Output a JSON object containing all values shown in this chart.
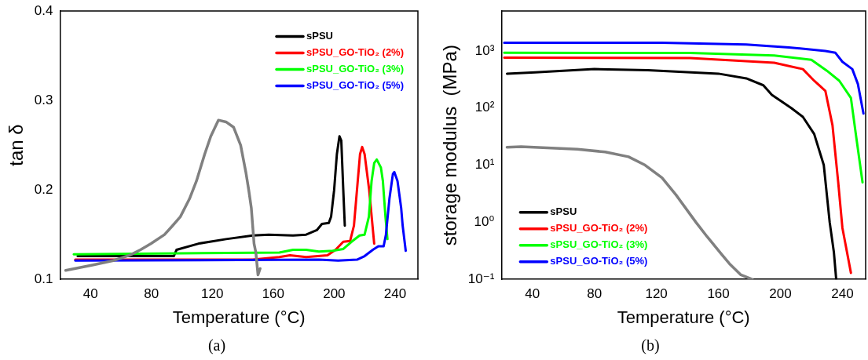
{
  "chart_data": [
    {
      "type": "line",
      "xlabel": "Temperature (°C)",
      "ylabel": "tan δ",
      "annotations": [
        "(a)"
      ],
      "xlim": [
        20,
        255
      ],
      "xticks": [
        40,
        80,
        120,
        160,
        200,
        240
      ],
      "ylim": [
        0.1,
        0.4
      ],
      "yticks": [
        0.1,
        0.2,
        0.3,
        0.4
      ],
      "grid": false,
      "legend": "top right",
      "marker": "none",
      "line_style": "solid",
      "series": [
        {
          "name": "sPSU",
          "color": "#000000",
          "x": [
            31.6,
            94.7,
            96.5,
            111,
            129,
            146.5,
            157,
            173,
            181.6,
            188.6,
            192,
            196.5,
            198,
            200,
            201.8,
            203.5,
            204.7,
            206,
            207
          ],
          "values": [
            0.126,
            0.126,
            0.133,
            0.14,
            0.145,
            0.149,
            0.15,
            0.149,
            0.15,
            0.155,
            0.162,
            0.163,
            0.17,
            0.2,
            0.24,
            0.26,
            0.255,
            0.2,
            0.16
          ]
        },
        {
          "name": "sPSU_GO-TiO₂ (2%)",
          "color": "#ff0000",
          "x": [
            30,
            146.5,
            164,
            171,
            181.6,
            195.6,
            200.9,
            206,
            210.5,
            213,
            215,
            217,
            218.4,
            220,
            223,
            226.3
          ],
          "values": [
            0.122,
            0.122,
            0.125,
            0.127,
            0.125,
            0.127,
            0.133,
            0.142,
            0.143,
            0.16,
            0.2,
            0.24,
            0.248,
            0.24,
            0.2,
            0.14
          ]
        },
        {
          "name": "sPSU_GO-TiO₂ (3%)",
          "color": "#00ff00",
          "x": [
            29,
            164,
            173,
            181.6,
            190,
            199,
            206,
            211.4,
            216.7,
            220,
            222.8,
            224.6,
            226.3,
            228,
            230.7,
            232,
            233.7,
            235
          ],
          "values": [
            0.128,
            0.13,
            0.133,
            0.133,
            0.131,
            0.132,
            0.134,
            0.142,
            0.149,
            0.15,
            0.17,
            0.21,
            0.23,
            0.234,
            0.225,
            0.21,
            0.17,
            0.145
          ]
        },
        {
          "name": "sPSU_GO-TiO₂ (5%)",
          "color": "#0000ff",
          "x": [
            30,
            190,
            202.6,
            215,
            220,
            225.4,
            229,
            232.5,
            234,
            236.3,
            238.6,
            239.5,
            241.6,
            244,
            245,
            247
          ],
          "values": [
            0.121,
            0.122,
            0.121,
            0.122,
            0.126,
            0.133,
            0.137,
            0.137,
            0.15,
            0.19,
            0.218,
            0.22,
            0.21,
            0.18,
            0.16,
            0.132
          ]
        },
        {
          "color": "#808080",
          "x": [
            23.7,
            41.2,
            55,
            65.8,
            72.8,
            79.8,
            88.6,
            93.9,
            99,
            105,
            109.6,
            115,
            119,
            124,
            129,
            134,
            138.6,
            142,
            143.9,
            145.6,
            147.4,
            148.6,
            150,
            151.4
          ],
          "values": [
            0.11,
            0.116,
            0.121,
            0.127,
            0.133,
            0.14,
            0.15,
            0.16,
            0.17,
            0.19,
            0.21,
            0.24,
            0.26,
            0.278,
            0.276,
            0.27,
            0.25,
            0.22,
            0.2,
            0.18,
            0.14,
            0.13,
            0.105,
            0.112
          ]
        }
      ]
    },
    {
      "type": "line",
      "xlabel": "Temperature (°C)",
      "ylabel": "storage modulus  (MPa)",
      "annotations": [
        "(b)"
      ],
      "log": true,
      "xlim": [
        20,
        255
      ],
      "xticks": [
        40,
        80,
        120,
        160,
        200,
        240
      ],
      "ylim": [
        0.1,
        5000
      ],
      "yticks": [
        {
          "value": 0.1,
          "label": "10⁻¹"
        },
        {
          "value": 1,
          "label": "10⁰"
        },
        {
          "value": 10,
          "label": "10¹"
        },
        {
          "value": 100,
          "label": "10²"
        },
        {
          "value": 1000,
          "label": "10³"
        }
      ],
      "grid": false,
      "legend": "bottom left",
      "marker": "none",
      "line_style": "solid",
      "series": [
        {
          "name": "sPSU",
          "color": "#000000",
          "x": [
            23.6,
            41.8,
            80,
            114.5,
            160,
            178,
            189,
            194.5,
            199,
            207,
            214.5,
            221.8,
            228,
            231.8,
            234.5,
            236
          ],
          "values": [
            400,
            420,
            480,
            460,
            400,
            330,
            250,
            170,
            140,
            100,
            70,
            35,
            10,
            1,
            0.3,
            0.1
          ]
        },
        {
          "name": "sPSU_GO-TiO₂ (2%)",
          "color": "#ff0000",
          "x": [
            21.8,
            141.8,
            196,
            214.5,
            221.8,
            229,
            233.6,
            237.3,
            240,
            245.5
          ],
          "values": [
            760,
            750,
            620,
            480,
            300,
            200,
            50,
            5,
            0.8,
            0.13
          ]
        },
        {
          "name": "sPSU_GO-TiO₂ (3%)",
          "color": "#00ff00",
          "x": [
            21.8,
            141.8,
            196,
            220,
            230,
            238,
            245.5,
            249,
            253
          ],
          "values": [
            925,
            920,
            830,
            700,
            450,
            300,
            150,
            30,
            5
          ]
        },
        {
          "name": "sPSU_GO-TiO₂ (5%)",
          "color": "#0000ff",
          "x": [
            21.8,
            123.6,
            178,
            205.5,
            229,
            235.5,
            240,
            246.4,
            250,
            253.6
          ],
          "values": [
            1390,
            1390,
            1290,
            1150,
            1000,
            926,
            645,
            480,
            263,
            80
          ]
        },
        {
          "color": "#808080",
          "x": [
            23.6,
            32.7,
            69,
            87,
            102,
            112.7,
            123.6,
            132.7,
            145.5,
            152.7,
            161.8,
            167,
            174.5,
            181.8
          ],
          "values": [
            20.6,
            21,
            19,
            17,
            14,
            10,
            6,
            3,
            1,
            0.56,
            0.28,
            0.19,
            0.12,
            0.1
          ]
        }
      ]
    }
  ]
}
